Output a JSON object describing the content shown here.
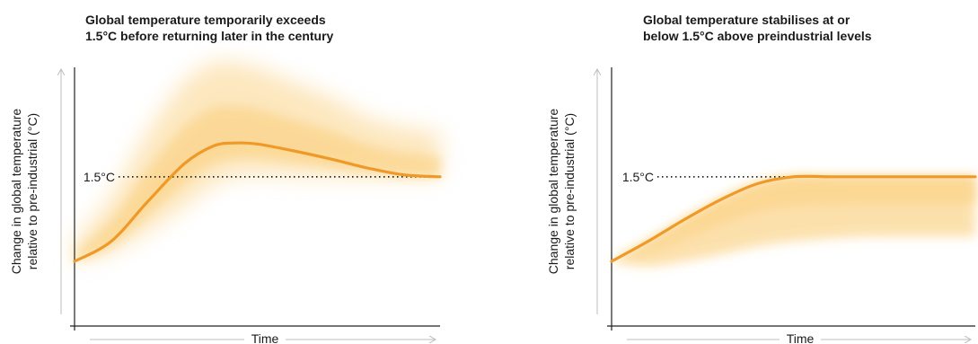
{
  "colors": {
    "line": "#ef9a28",
    "band": "#fbd48a",
    "axis": "#222222",
    "arrow": "#bdbdbd",
    "dotted": "#222222"
  },
  "chart_data": [
    {
      "type": "line",
      "title_lines": [
        "Global temperature temporarily exceeds",
        "1.5°C before returning later in the century"
      ],
      "xlabel": "Time",
      "ylabel_lines": [
        "Change in global temperature",
        "relative to pre-industrial (°C)"
      ],
      "reference_label": "1.5°C",
      "reference_value": 1.5,
      "ylim": [
        0,
        2.6
      ],
      "x": [
        0,
        0.1,
        0.2,
        0.3,
        0.38,
        0.44,
        0.5,
        0.6,
        0.7,
        0.8,
        0.9,
        1.0
      ],
      "series": [
        {
          "values": [
            0.65,
            0.85,
            1.25,
            1.63,
            1.81,
            1.84,
            1.83,
            1.76,
            1.68,
            1.59,
            1.52,
            1.5
          ],
          "band_upper": [
            0.85,
            1.3,
            1.95,
            2.45,
            2.65,
            2.65,
            2.6,
            2.45,
            2.3,
            2.1,
            2.0,
            1.95
          ],
          "band_lower": [
            0.65,
            0.75,
            0.95,
            1.2,
            1.42,
            1.5,
            1.52,
            1.51,
            1.5,
            1.5,
            1.5,
            1.5
          ]
        }
      ]
    },
    {
      "type": "line",
      "title_lines": [
        "Global temperature stabilises at or",
        "below 1.5°C above preindustrial levels"
      ],
      "xlabel": "Time",
      "ylabel_lines": [
        "Change in global temperature",
        "relative to pre-industrial (°C)"
      ],
      "reference_label": "1.5°C",
      "reference_value": 1.5,
      "ylim": [
        0,
        2.6
      ],
      "x": [
        0,
        0.1,
        0.2,
        0.3,
        0.4,
        0.5,
        0.6,
        0.7,
        0.8,
        0.9,
        1.0
      ],
      "series": [
        {
          "values": [
            0.65,
            0.85,
            1.07,
            1.27,
            1.43,
            1.5,
            1.5,
            1.5,
            1.5,
            1.5,
            1.5
          ],
          "band_upper": [
            0.65,
            0.85,
            1.07,
            1.27,
            1.43,
            1.5,
            1.5,
            1.5,
            1.5,
            1.5,
            1.5
          ],
          "band_lower": [
            0.65,
            0.6,
            0.65,
            0.72,
            0.8,
            0.85,
            0.88,
            0.9,
            0.9,
            0.9,
            0.9
          ]
        }
      ]
    }
  ]
}
